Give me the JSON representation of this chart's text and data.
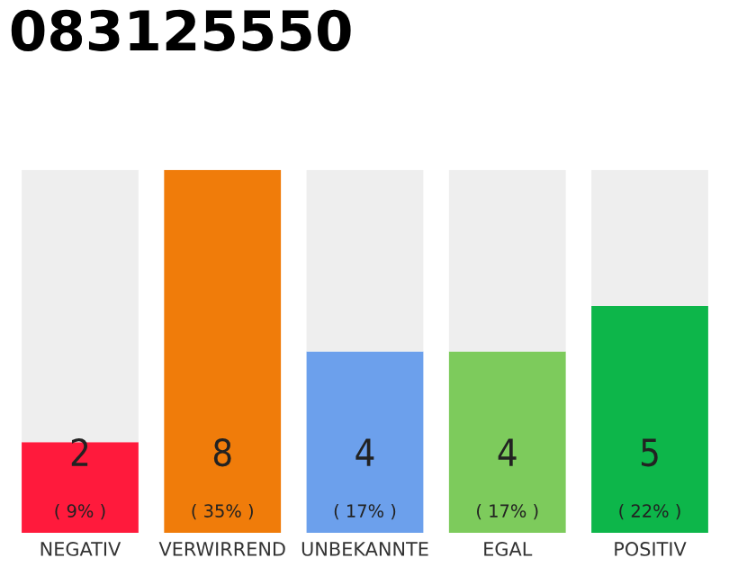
{
  "chart_data": {
    "type": "bar",
    "title": "083125550",
    "categories": [
      "NEGATIV",
      "VERWIRREND",
      "UNBEKANNTE",
      "EGAL",
      "POSITIV"
    ],
    "stacked": true,
    "series": [
      {
        "colors": [
          "#ff1a3c",
          "#f07c0a",
          "#6ca0ec",
          "#7dcb5c",
          "#0db64a"
        ],
        "values": [
          2,
          8,
          4,
          4,
          5
        ],
        "value_labels": [
          "2\n( 9% )",
          "8\n( 35% )",
          "4\n( 17% )",
          "4\n( 17% )",
          "5\n( 22% )"
        ]
      },
      {
        "color": "#eeeeee",
        "values": [
          6,
          0,
          4,
          4,
          3
        ]
      }
    ],
    "ylim": [
      0,
      8
    ],
    "tick_labels": "x",
    "grid": false,
    "legend": false
  }
}
